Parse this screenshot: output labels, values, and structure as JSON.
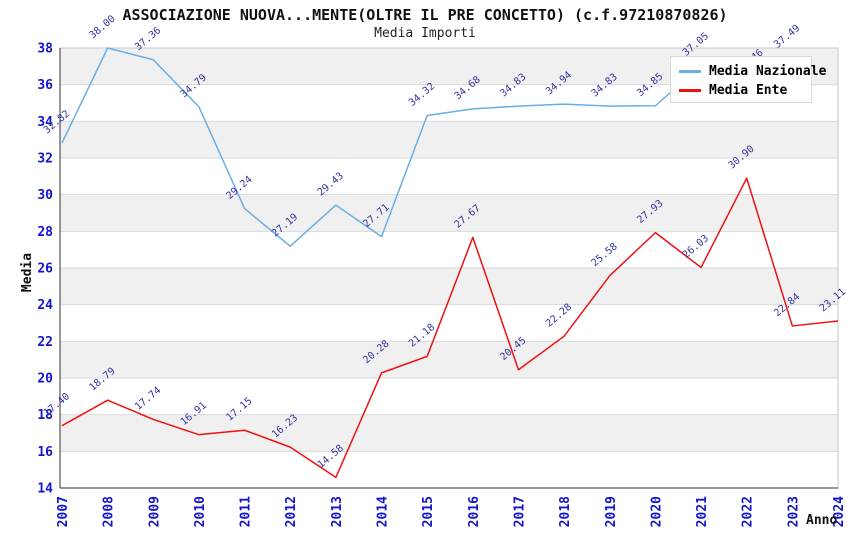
{
  "header": {
    "title": "ASSOCIAZIONE NUOVA...MENTE(OLTRE IL PRE CONCETTO) (c.f.97210870826)",
    "subtitle": "Media Importi"
  },
  "legend": {
    "items": [
      {
        "label": "Media Nazionale",
        "color": "#6aaee4"
      },
      {
        "label": "Media Ente",
        "color": "#ee1111"
      }
    ]
  },
  "axes": {
    "y_title": "Media",
    "x_title": "Anno"
  },
  "colors": {
    "tick_label": "#1414cc",
    "data_label": "#3333a0",
    "band_gray": "#f0f0f0",
    "gridline": "#d9d9d9",
    "plot_border": "#c9c9c9",
    "axis_line": "#333333"
  },
  "chart_data": {
    "type": "line",
    "title": "ASSOCIAZIONE NUOVA...MENTE(OLTRE IL PRE CONCETTO) (c.f.97210870826)",
    "subtitle": "Media Importi",
    "xlabel": "Anno",
    "ylabel": "Media",
    "x": [
      2007,
      2008,
      2009,
      2010,
      2011,
      2012,
      2013,
      2014,
      2015,
      2016,
      2017,
      2018,
      2019,
      2020,
      2021,
      2022,
      2023,
      2024
    ],
    "ylim": [
      14,
      38
    ],
    "ytick_step": 2,
    "grid": "horizontal-bands",
    "legend_position": "top-right-inside",
    "series": [
      {
        "name": "Media Nazionale",
        "color": "#6aaee4",
        "values": [
          32.82,
          38.0,
          37.36,
          34.79,
          29.24,
          27.19,
          29.43,
          27.71,
          34.32,
          34.68,
          34.83,
          34.94,
          34.83,
          34.85,
          37.05,
          37.46,
          37.49,
          null
        ]
      },
      {
        "name": "Media Ente",
        "color": "#ee1111",
        "values": [
          17.4,
          18.79,
          17.74,
          16.91,
          17.15,
          16.23,
          14.58,
          20.28,
          21.18,
          27.67,
          20.45,
          22.28,
          25.58,
          27.93,
          26.03,
          30.9,
          22.84,
          23.11
        ]
      }
    ]
  }
}
